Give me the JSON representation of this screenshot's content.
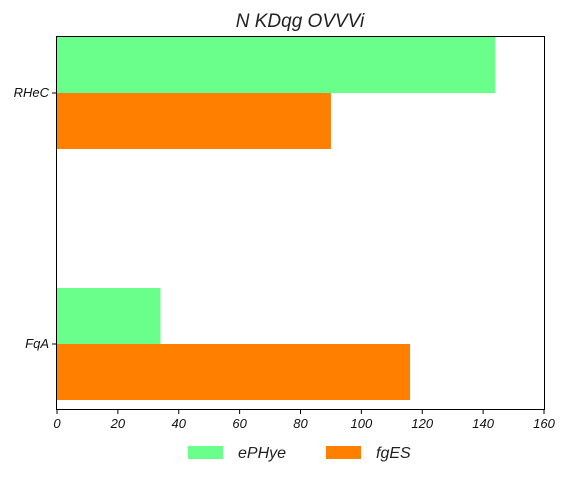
{
  "chart_data": {
    "type": "bar",
    "orientation": "horizontal",
    "title": "N  KDqg OVVVi",
    "xlabel": "",
    "ylabel": "",
    "categories": [
      "RHeC",
      "FqA"
    ],
    "series": [
      {
        "name": "ePHye",
        "values": [
          144,
          34
        ],
        "color": "#69ff8a"
      },
      {
        "name": "fgES",
        "values": [
          90,
          116
        ],
        "color": "#ff7f00"
      }
    ],
    "xlim": [
      0,
      160
    ],
    "xticks": [
      0,
      20,
      40,
      60,
      80,
      100,
      120,
      140,
      160
    ],
    "grid": false,
    "legend_position": "bottom-center"
  }
}
